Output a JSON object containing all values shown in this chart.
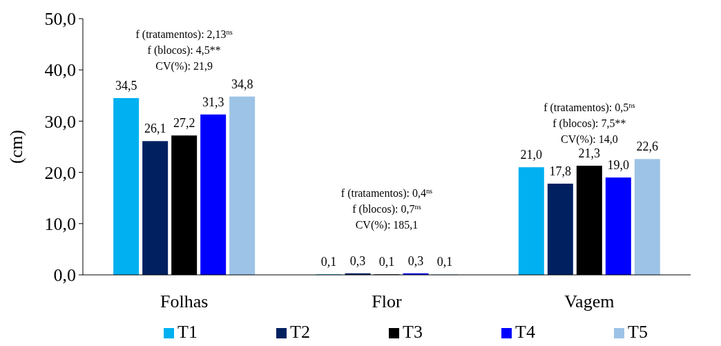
{
  "chart_data": {
    "type": "bar",
    "ylabel": "(cm)",
    "categories": [
      "Folhas",
      "Flor",
      "Vagem"
    ],
    "series": [
      {
        "name": "T1",
        "color": "#00b0f0",
        "values": [
          34.5,
          0.1,
          21.0
        ],
        "value_labels": [
          "34,5",
          "0,1",
          "21,0"
        ]
      },
      {
        "name": "T2",
        "color": "#002060",
        "values": [
          26.1,
          0.3,
          17.8
        ],
        "value_labels": [
          "26,1",
          "0,3",
          "17,8"
        ]
      },
      {
        "name": "T3",
        "color": "#000000",
        "values": [
          27.2,
          0.1,
          21.3
        ],
        "value_labels": [
          "27,2",
          "0,1",
          "21,3"
        ]
      },
      {
        "name": "T4",
        "color": "#0000ff",
        "values": [
          31.3,
          0.3,
          19.0
        ],
        "value_labels": [
          "31,3",
          "0,3",
          "19,0"
        ]
      },
      {
        "name": "T5",
        "color": "#9dc3e6",
        "values": [
          34.8,
          0.1,
          22.6
        ],
        "value_labels": [
          "34,8",
          "0,1",
          "22,6"
        ]
      }
    ],
    "ylim": [
      0,
      50
    ],
    "yticks": [
      {
        "value": 0,
        "label": "0,0"
      },
      {
        "value": 10,
        "label": "10,0"
      },
      {
        "value": 20,
        "label": "20,0"
      },
      {
        "value": 30,
        "label": "30,0"
      },
      {
        "value": 40,
        "label": "40,0"
      },
      {
        "value": 50,
        "label": "50,0"
      }
    ],
    "grid": false,
    "legend": "bottom",
    "annotations": [
      "f (tratamentos): 2,13$^{ns}$",
      "f (blocos): 4,5**",
      "CV(%): 21,9",
      "f (tratamentos): 0,4$^{ns}$",
      "f (blocos): 0,7$^{ns}$",
      "CV(%): 185,1",
      "f (tratamentos): 0,5$^{ns}$",
      "f (blocos): 7,5**",
      "CV(%): 14,0"
    ]
  }
}
